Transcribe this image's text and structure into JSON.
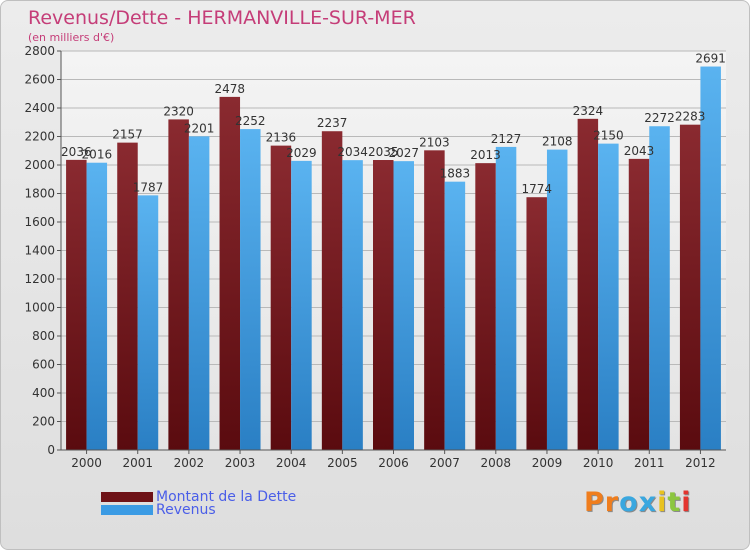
{
  "title": "Revenus/Dette - HERMANVILLE-SUR-MER",
  "subtitle": "(en milliers d'€)",
  "colors": {
    "title": "#c53d78",
    "debt": "#6e1217",
    "revenue": "#3b9be4",
    "legend_text": "#4a5ee8",
    "grid": "#b9b9b9"
  },
  "legend": [
    {
      "label": "Montant de la Dette",
      "color": "#6e1217"
    },
    {
      "label": "Revenus",
      "color": "#3b9be4"
    }
  ],
  "logo": {
    "text": "Proxiti",
    "letter_colors": [
      "#ef7d1d",
      "#ef7d1d",
      "#3aa7df",
      "#3aa7df",
      "#e8c21f",
      "#8cc63f",
      "#e3342f"
    ]
  },
  "chart_data": {
    "type": "bar",
    "categories": [
      "2000",
      "2001",
      "2002",
      "2003",
      "2004",
      "2005",
      "2006",
      "2007",
      "2008",
      "2009",
      "2010",
      "2011",
      "2012"
    ],
    "series": [
      {
        "name": "Montant de la Dette",
        "values": [
          2036,
          2157,
          2320,
          2478,
          2136,
          2237,
          2035,
          2103,
          2013,
          1774,
          2324,
          2043,
          2283
        ],
        "labels": [
          "2036",
          "2157",
          "2320",
          "2478",
          "2136",
          "2237",
          "2035",
          "2103",
          "2013",
          "1774",
          "2324",
          "2043",
          "2283"
        ]
      },
      {
        "name": "Revenus",
        "values": [
          2016,
          1787,
          2201,
          2252,
          2029,
          2034,
          2027,
          1883,
          2127,
          2108,
          2150,
          2272,
          2691
        ],
        "labels": [
          "2016",
          "1787",
          "2201",
          "2252",
          "2029",
          "2034",
          "2027",
          "1883",
          "2127",
          "2108",
          "2150",
          "2272",
          "2691"
        ]
      }
    ],
    "ylim": [
      0,
      2800
    ],
    "yticks": [
      0,
      200,
      400,
      600,
      800,
      1000,
      1200,
      1400,
      1600,
      1800,
      2000,
      2200,
      2400,
      2600,
      2800
    ],
    "grid": true,
    "legend_position": "bottom-left"
  }
}
